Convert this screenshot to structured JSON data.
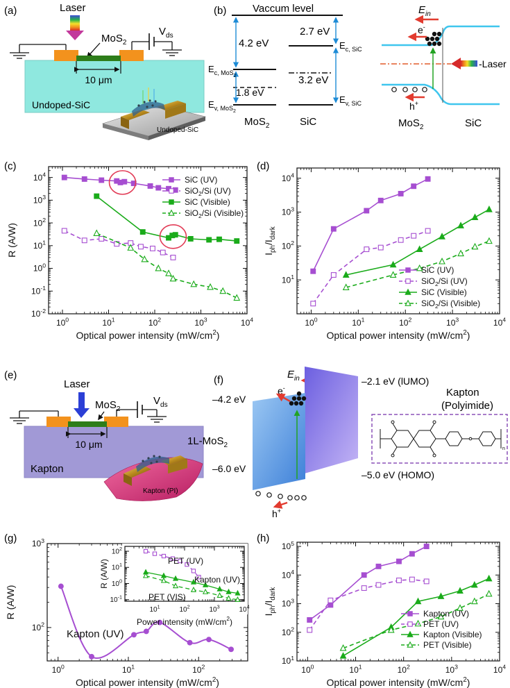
{
  "colors": {
    "purple": "#a64ed1",
    "green": "#1aab1a",
    "orange": "#f3921d",
    "dark_green": "#2e7d1a",
    "cyan": "#3fc6ee",
    "sic_fill": "#8fe8df",
    "kapton_fill": "#a199d6",
    "red": "#e23b2f",
    "band_blue": "#1d8bd6",
    "laser_blue": "#2b3fd6",
    "inset_border": "#8b52b8"
  },
  "panel_labels": {
    "a": "(a)",
    "b": "(b)",
    "c": "(c)",
    "d": "(d)",
    "e": "(e)",
    "f": "(f)",
    "g": "(g)",
    "h": "(h)"
  },
  "panel_a": {
    "laser": "Laser",
    "mos2": "MoS",
    "mos2_sub": "2",
    "vds": "V",
    "vds_sub": "ds",
    "width": "10 μm",
    "substrate": "Undoped-SiC",
    "device_label": "Undoped-SiC"
  },
  "panel_b": {
    "vacuum": "Vaccum level",
    "e1": "4.2 eV",
    "e2": "2.7 eV",
    "e3": "1.8 eV",
    "e4": "3.2 eV",
    "ec_mos2": "E",
    "ec_mos2_sub": "c, MoS",
    "ev_mos2": "E",
    "ev_mos2_sub": "v, MoS",
    "sub2": "2",
    "ec_sic": "E",
    "ec_sic_sub": "c, SiC",
    "ev_sic": "E",
    "ev_sic_sub": "v, SiC",
    "mat1": "MoS",
    "mat1_sub": "2",
    "mat2": "SiC",
    "ein": "E",
    "ein_sub": "in",
    "electron": "e",
    "electron_sup": "-",
    "hole": "h",
    "hole_sup": "+",
    "laser": "-Laser",
    "right_mat1": "MoS",
    "right_mat1_sub": "2",
    "right_mat2": "SiC"
  },
  "panel_e": {
    "laser": "Laser",
    "mos2": "MoS",
    "mos2_sub": "2",
    "vds": "V",
    "vds_sub": "ds",
    "width": "10 μm",
    "substrate": "Kapton",
    "device_label": "Kapton (PI)"
  },
  "panel_f": {
    "ein": "E",
    "ein_sub": "in",
    "lumo": "–2.1 eV (lUMO)",
    "kapton": "Kapton",
    "polyimide": "(Polyimide)",
    "e_left1": "–4.2 eV",
    "e_left2": "–6.0 eV",
    "mos2": "1L-MoS",
    "mos2_sub": "2",
    "homo": "–5.0 eV (HOMO)",
    "electron": "e",
    "electron_sup": "-",
    "hole": "h",
    "hole_sup": "+",
    "n_label": "n"
  },
  "chart_data": [
    {
      "id": "c",
      "type": "scatter",
      "xscale": "log",
      "yscale": "log",
      "xlim": [
        0.5,
        10000
      ],
      "ylim": [
        0.01,
        30000
      ],
      "xlabel": "Optical power intensity (mW/cm²)",
      "xlabel_main": "Optical power intensity (mW/cm",
      "xlabel_sup": "2",
      "xlabel_end": ")",
      "ylabel": "R (A/W)",
      "xticks": [
        {
          "v": 1,
          "m": "10",
          "e": "0"
        },
        {
          "v": 10,
          "m": "10",
          "e": "1"
        },
        {
          "v": 100,
          "m": "10",
          "e": "2"
        },
        {
          "v": 1000,
          "m": "10",
          "e": "3"
        },
        {
          "v": 10000,
          "m": "10",
          "e": "4"
        }
      ],
      "yticks": [
        {
          "v": 0.01,
          "m": "10",
          "e": "-2"
        },
        {
          "v": 0.1,
          "m": "10",
          "e": "-1"
        },
        {
          "v": 1,
          "m": "10",
          "e": "0"
        },
        {
          "v": 10,
          "m": "10",
          "e": "1"
        },
        {
          "v": 100,
          "m": "10",
          "e": "2"
        },
        {
          "v": 1000,
          "m": "10",
          "e": "3"
        },
        {
          "v": 10000,
          "m": "10",
          "e": "4"
        }
      ],
      "legend_position": "top-right",
      "series": [
        {
          "name": "SiC (UV)",
          "sub": "",
          "name_end": "",
          "color": "purple",
          "marker": "square",
          "filled": true,
          "line": "solid",
          "x": [
            1.1,
            3,
            7,
            15,
            18,
            22,
            35,
            80,
            120,
            200,
            280
          ],
          "y": [
            10000,
            8500,
            7600,
            7000,
            6000,
            6500,
            5500,
            4200,
            3500,
            3200,
            2800
          ]
        },
        {
          "name": "SiO",
          "sub": "2",
          "name_end": "/Si (UV)",
          "color": "purple",
          "marker": "square",
          "filled": false,
          "line": "dashed",
          "x": [
            1.1,
            3,
            7,
            15,
            30,
            50,
            90,
            150,
            250
          ],
          "y": [
            45,
            17,
            20,
            12,
            13,
            9,
            7.5,
            5,
            3
          ]
        },
        {
          "name": "SiC (Visible)",
          "sub": "",
          "name_end": "",
          "color": "green",
          "marker": "square",
          "filled": true,
          "line": "solid",
          "x": [
            5.5,
            55,
            200,
            240,
            280,
            600,
            1500,
            2500,
            6000
          ],
          "y": [
            1500,
            40,
            22,
            28,
            30,
            20,
            18,
            19,
            16
          ]
        },
        {
          "name": "SiO",
          "sub": "2",
          "name_end": "/Si (Visible)",
          "color": "green",
          "marker": "triangle",
          "filled": false,
          "line": "dashed",
          "x": [
            5.5,
            30,
            60,
            120,
            200,
            250,
            700,
            1600,
            3000,
            6000
          ],
          "y": [
            35,
            8,
            2.5,
            1,
            0.6,
            0.35,
            0.2,
            0.15,
            0.1,
            0.05
          ]
        }
      ],
      "annotations": [
        {
          "type": "circle",
          "x": 20,
          "y": 6000,
          "label": ""
        },
        {
          "type": "circle",
          "x": 250,
          "y": 25,
          "label": ""
        }
      ]
    },
    {
      "id": "d",
      "type": "line",
      "xscale": "log",
      "yscale": "log",
      "xlim": [
        0.5,
        10000
      ],
      "ylim": [
        1,
        20000
      ],
      "xlabel": "Optical power intensity (mW/cm²)",
      "xlabel_main": "Optical power intensity (mW/cm",
      "xlabel_sup": "2",
      "xlabel_end": ")",
      "ylabel": "I_ph/I_dark",
      "ylabel_main": "I",
      "ylabel_sub1": "ph",
      "ylabel_mid": "/I",
      "ylabel_sub2": "dark",
      "xticks": [
        {
          "v": 1,
          "m": "10",
          "e": "0"
        },
        {
          "v": 10,
          "m": "10",
          "e": "1"
        },
        {
          "v": 100,
          "m": "10",
          "e": "2"
        },
        {
          "v": 1000,
          "m": "10",
          "e": "3"
        },
        {
          "v": 10000,
          "m": "10",
          "e": "4"
        }
      ],
      "yticks": [
        {
          "v": 10,
          "m": "10",
          "e": "1"
        },
        {
          "v": 100,
          "m": "10",
          "e": "2"
        },
        {
          "v": 1000,
          "m": "10",
          "e": "3"
        },
        {
          "v": 10000,
          "m": "10",
          "e": "4"
        }
      ],
      "legend_position": "bottom-right",
      "series": [
        {
          "name": "SiC (UV)",
          "sub": "",
          "name_end": "",
          "color": "purple",
          "marker": "square",
          "filled": true,
          "line": "solid",
          "x": [
            1.1,
            3,
            15,
            30,
            80,
            150,
            300
          ],
          "y": [
            18,
            320,
            1100,
            2200,
            3500,
            5800,
            9500
          ]
        },
        {
          "name": "SiO",
          "sub": "2",
          "name_end": "/Si (UV)",
          "color": "purple",
          "marker": "square",
          "filled": false,
          "line": "dashed",
          "x": [
            1.1,
            3,
            15,
            30,
            80,
            150,
            300
          ],
          "y": [
            2,
            14,
            80,
            90,
            150,
            200,
            280
          ]
        },
        {
          "name": "SiC (Visible)",
          "sub": "",
          "name_end": "",
          "color": "green",
          "marker": "triangle",
          "filled": true,
          "line": "solid",
          "x": [
            5.5,
            55,
            200,
            600,
            1500,
            3000,
            6000
          ],
          "y": [
            14,
            28,
            80,
            190,
            400,
            700,
            1200
          ]
        },
        {
          "name": "SiO",
          "sub": "2",
          "name_end": "/Si (Visible)",
          "color": "green",
          "marker": "triangle",
          "filled": false,
          "line": "dashed",
          "x": [
            5.5,
            55,
            200,
            600,
            1500,
            3000,
            6000
          ],
          "y": [
            6,
            14,
            22,
            35,
            60,
            95,
            140
          ]
        }
      ]
    },
    {
      "id": "g",
      "type": "scatter",
      "xscale": "log",
      "yscale": "log",
      "xlim": [
        0.7,
        500
      ],
      "ylim": [
        40,
        1000
      ],
      "xlabel": "Optical power intensity (mW/cm²)",
      "xlabel_main": "Optical power intensity (mW/cm",
      "xlabel_sup": "2",
      "xlabel_end": ")",
      "ylabel": "R (A/W)",
      "xticks": [
        {
          "v": 1,
          "m": "10",
          "e": "0"
        },
        {
          "v": 10,
          "m": "10",
          "e": "1"
        },
        {
          "v": 100,
          "m": "10",
          "e": "2"
        }
      ],
      "yticks": [
        {
          "v": 100,
          "m": "10",
          "e": "2"
        },
        {
          "v": 1000,
          "m": "10",
          "e": "3"
        }
      ],
      "series": [
        {
          "name": "Kapton (UV)",
          "color": "purple",
          "marker": "circle",
          "filled": true,
          "line": "smooth",
          "x": [
            1.1,
            3,
            12,
            18,
            28,
            75,
            140,
            290
          ],
          "y": [
            310,
            45,
            82,
            90,
            115,
            66,
            72,
            55
          ]
        }
      ],
      "series_label": "Kapton (UV)",
      "inset": {
        "xscale": "log",
        "yscale": "log",
        "xlim": [
          1,
          10000
        ],
        "ylim": [
          0.08,
          200
        ],
        "xlabel": "Power intensity (mW/cm²)",
        "xlabel_main": "Power intensity (mW/cm",
        "xlabel_sup": "2",
        "xlabel_end": ")",
        "ylabel": "R (A/W)",
        "xticks": [
          {
            "v": 10,
            "m": "10",
            "e": "1"
          },
          {
            "v": 100,
            "m": "10",
            "e": "2"
          },
          {
            "v": 1000,
            "m": "10",
            "e": "3"
          },
          {
            "v": 10000,
            "m": "10",
            "e": "4"
          }
        ],
        "yticks": [
          {
            "v": 0.1,
            "m": "10",
            "e": "-1"
          },
          {
            "v": 1,
            "m": "10",
            "e": "0"
          },
          {
            "v": 10,
            "m": "10",
            "e": "1"
          },
          {
            "v": 100,
            "m": "10",
            "e": "2"
          }
        ],
        "labels": {
          "pet_uv": "PET (UV)",
          "kapton_uv": "Kapton (UV)",
          "pet_vis": "PET (VIS)"
        },
        "series": [
          {
            "name": "PET (UV)",
            "color": "purple",
            "marker": "square",
            "filled": false,
            "line": "dashed",
            "x": [
              5,
              10,
              20,
              40,
              70,
              120,
              200,
              300
            ],
            "y": [
              100,
              70,
              50,
              35,
              25,
              15,
              6,
              2.5
            ]
          },
          {
            "name": "Kapton (UV)",
            "color": "green",
            "marker": "triangle",
            "filled": true,
            "line": "solid",
            "x": [
              5,
              20,
              50,
              200,
              500,
              1500,
              3000,
              6000
            ],
            "y": [
              5,
              3,
              2,
              1.2,
              0.8,
              0.45,
              0.3,
              0.25
            ]
          },
          {
            "name": "PET (VIS)",
            "color": "green",
            "marker": "triangle",
            "filled": false,
            "line": "dashed",
            "x": [
              5,
              20,
              50,
              200,
              500,
              1500,
              3000,
              6000
            ],
            "y": [
              3,
              1.5,
              0.7,
              0.4,
              0.3,
              0.18,
              0.12,
              0.1
            ]
          }
        ]
      }
    },
    {
      "id": "h",
      "type": "line",
      "xscale": "log",
      "yscale": "log",
      "xlim": [
        0.6,
        10000
      ],
      "ylim": [
        10,
        140000
      ],
      "xlabel": "Optical power intensity (mW/cm²)",
      "xlabel_main": "Optical power intensity (mW/cm",
      "xlabel_sup": "2",
      "xlabel_end": ")",
      "ylabel": "I_ph/I_dark",
      "ylabel_main": "I",
      "ylabel_sub1": "ph",
      "ylabel_mid": "/I",
      "ylabel_sub2": "dark",
      "xticks": [
        {
          "v": 1,
          "m": "10",
          "e": "0"
        },
        {
          "v": 10,
          "m": "10",
          "e": "1"
        },
        {
          "v": 100,
          "m": "10",
          "e": "2"
        },
        {
          "v": 1000,
          "m": "10",
          "e": "3"
        },
        {
          "v": 10000,
          "m": "10",
          "e": "4"
        }
      ],
      "yticks": [
        {
          "v": 10,
          "m": "10",
          "e": "1"
        },
        {
          "v": 100,
          "m": "10",
          "e": "2"
        },
        {
          "v": 1000,
          "m": "10",
          "e": "3"
        },
        {
          "v": 10000,
          "m": "10",
          "e": "4"
        },
        {
          "v": 100000,
          "m": "10",
          "e": "5"
        }
      ],
      "legend_position": "bottom-right",
      "series": [
        {
          "name": "Kapton (UV)",
          "color": "purple",
          "marker": "square",
          "filled": true,
          "line": "solid",
          "x": [
            1.1,
            3,
            15,
            30,
            80,
            150,
            300
          ],
          "y": [
            270,
            900,
            10000,
            20000,
            30000,
            55000,
            100000
          ]
        },
        {
          "name": "PET (UV)",
          "color": "purple",
          "marker": "square",
          "filled": false,
          "line": "dashed",
          "x": [
            1.1,
            3,
            15,
            30,
            80,
            150,
            300
          ],
          "y": [
            120,
            1300,
            3500,
            4500,
            6500,
            7000,
            6000
          ]
        },
        {
          "name": "Kapton (Visible)",
          "color": "green",
          "marker": "triangle",
          "filled": true,
          "line": "solid",
          "x": [
            5.5,
            55,
            200,
            600,
            1500,
            3000,
            6000
          ],
          "y": [
            15,
            150,
            1200,
            1800,
            2800,
            4500,
            7500
          ]
        },
        {
          "name": "PET (Visible)",
          "color": "green",
          "marker": "triangle",
          "filled": false,
          "line": "dashed",
          "x": [
            5.5,
            55,
            200,
            600,
            1500,
            3000,
            6000
          ],
          "y": [
            28,
            120,
            200,
            350,
            700,
            1200,
            2200
          ]
        }
      ]
    }
  ]
}
